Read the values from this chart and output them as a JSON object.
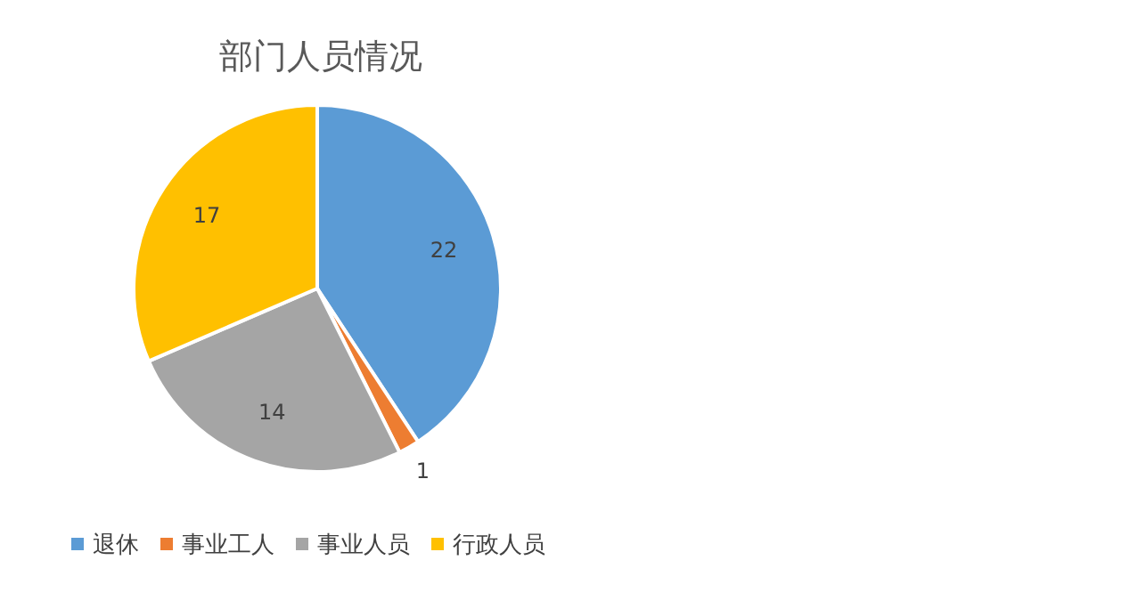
{
  "chart_data": {
    "type": "pie",
    "title": "部门人员情况",
    "categories": [
      "退休",
      "事业工人",
      "事业人员",
      "行政人员"
    ],
    "values": [
      22,
      1,
      14,
      17
    ],
    "colors": [
      "#5b9bd5",
      "#ed7d31",
      "#a5a5a5",
      "#ffc000"
    ],
    "data_labels": true,
    "legend": "bottom"
  }
}
